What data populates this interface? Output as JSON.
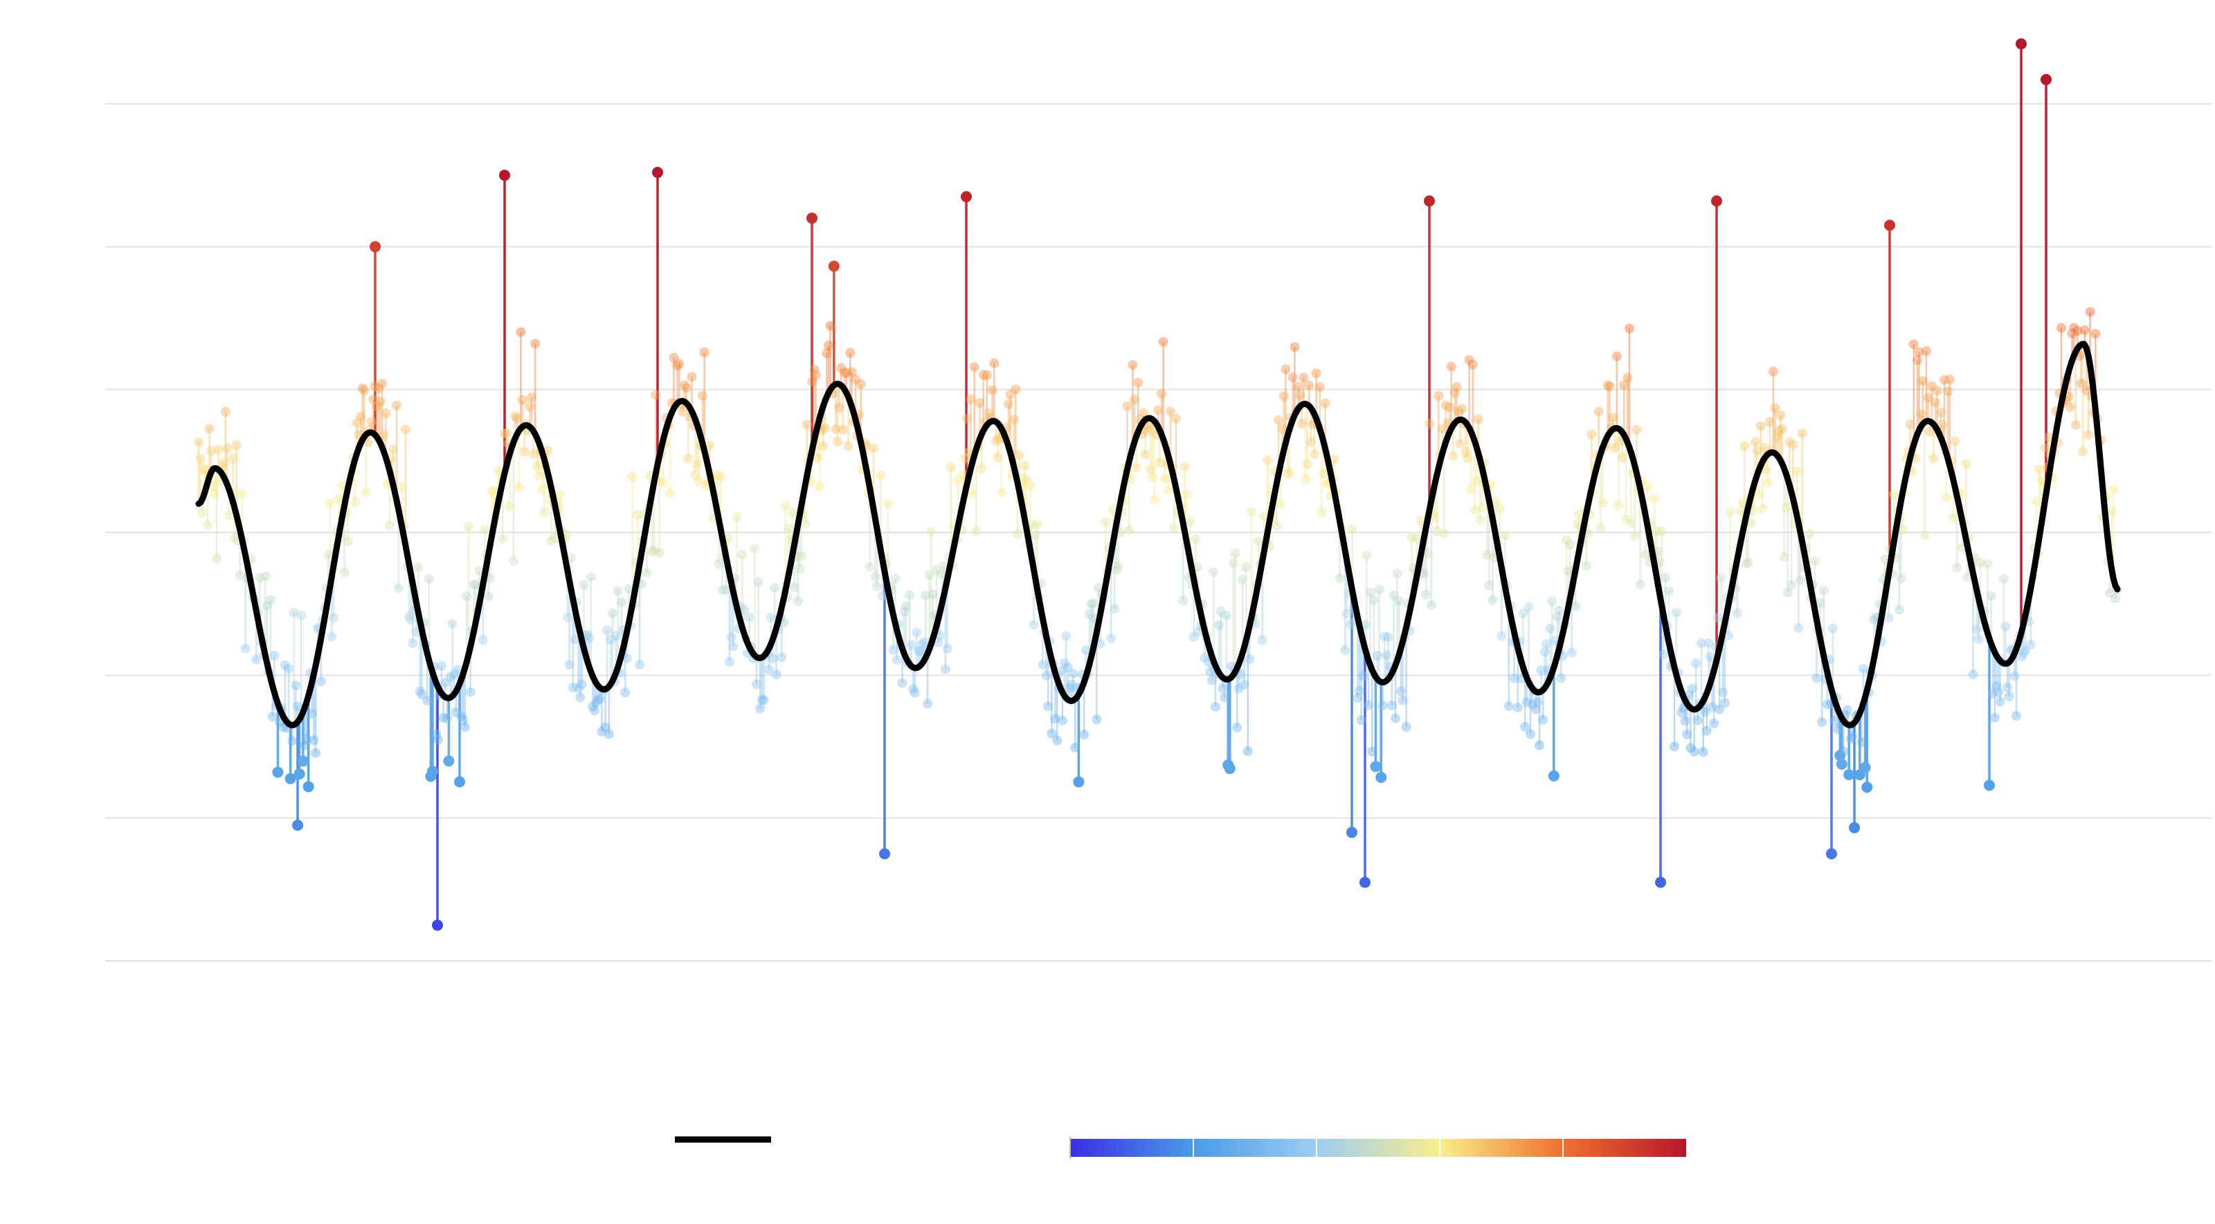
{
  "chart_data": {
    "type": "scatter",
    "description_visible_text": "",
    "axes": {
      "x_range": [
        0,
        1
      ],
      "y_range": [
        -3.0,
        3.0
      ],
      "y_gridlines": [
        -3.0,
        -2.0,
        -1.0,
        0.0,
        1.0,
        2.0,
        3.0
      ],
      "grid": true,
      "tick_labels_visible": false
    },
    "smooth_series": {
      "legend_swatch_color": "#000000",
      "line_color": "#000000",
      "peaks": [
        0.45,
        0.7,
        0.75,
        0.92,
        1.04,
        0.78,
        0.8,
        0.9,
        0.79,
        0.73,
        0.56,
        0.78,
        1.32
      ],
      "troughs": [
        -1.35,
        -1.16,
        -1.1,
        -0.88,
        -0.95,
        -1.18,
        -1.03,
        -1.05,
        -1.12,
        -1.24,
        -1.35,
        -0.92
      ],
      "start_value": 0.2,
      "end_value": -0.4
    },
    "observations": {
      "style": "lollipop-points",
      "colorbar": {
        "range": [
          -3,
          2.5
        ],
        "stops": [
          "#3a2ee6",
          "#4a9be8",
          "#9ccdf2",
          "#f9ee8c",
          "#f0702e",
          "#b8162c"
        ]
      },
      "highlighted_extremes": [
        3.42,
        3.17,
        2.5,
        2.52,
        2.35,
        2.2,
        2.32,
        2.32,
        2.15,
        2.0,
        -2.75,
        -2.05,
        -2.25,
        -2.1,
        -2.45,
        -2.45,
        -2.25
      ]
    },
    "legend": {
      "placement": "bottom-center",
      "entries": [
        {
          "kind": "line",
          "color": "#000000"
        },
        {
          "kind": "colorbar"
        }
      ]
    }
  }
}
